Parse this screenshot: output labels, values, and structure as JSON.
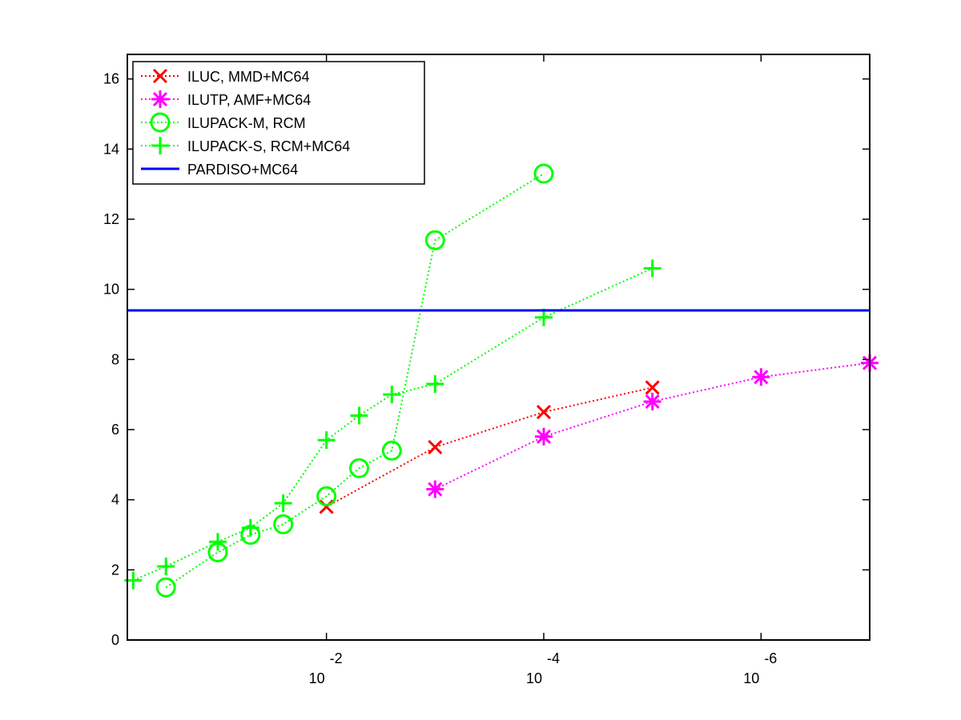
{
  "chart_data": {
    "type": "line",
    "title": "",
    "xlabel": "",
    "ylabel": "",
    "x_scale": "log-reversed",
    "x_tick_labels": [
      {
        "value": 0.01,
        "base": "10",
        "exp": "-2"
      },
      {
        "value": 0.0001,
        "base": "10",
        "exp": "-4"
      },
      {
        "value": 1e-06,
        "base": "10",
        "exp": "-6"
      }
    ],
    "xlim": [
      0.68,
      1e-07
    ],
    "ylim": [
      0,
      16.7
    ],
    "y_ticks": [
      0,
      2,
      4,
      6,
      8,
      10,
      12,
      14,
      16
    ],
    "legend_position": "top-left",
    "series": [
      {
        "name": "ILUC, MMD+MC64",
        "color": "#ff0000",
        "marker": "x",
        "line_style": "dotted",
        "points": [
          [
            0.01,
            3.8
          ],
          [
            0.001,
            5.5
          ],
          [
            0.0001,
            6.5
          ],
          [
            1e-05,
            7.2
          ]
        ]
      },
      {
        "name": "ILUTP, AMF+MC64",
        "color": "#ff00ff",
        "marker": "asterisk",
        "line_style": "dotted",
        "points": [
          [
            0.001,
            4.3
          ],
          [
            0.0001,
            5.8
          ],
          [
            1e-05,
            6.8
          ],
          [
            1e-06,
            7.5
          ],
          [
            1e-07,
            7.9
          ]
        ]
      },
      {
        "name": "ILUPACK-M, RCM",
        "color": "#00ff00",
        "marker": "circle",
        "line_style": "dotted",
        "points": [
          [
            0.3,
            1.5
          ],
          [
            0.1,
            2.5
          ],
          [
            0.05,
            3.0
          ],
          [
            0.025,
            3.3
          ],
          [
            0.01,
            4.1
          ],
          [
            0.005,
            4.9
          ],
          [
            0.0025,
            5.4
          ],
          [
            0.001,
            11.4
          ],
          [
            0.0001,
            13.3
          ]
        ]
      },
      {
        "name": "ILUPACK-S, RCM+MC64",
        "color": "#00ff00",
        "marker": "plus",
        "line_style": "dotted",
        "points": [
          [
            0.6,
            1.7
          ],
          [
            0.3,
            2.1
          ],
          [
            0.1,
            2.8
          ],
          [
            0.05,
            3.2
          ],
          [
            0.025,
            3.9
          ],
          [
            0.01,
            5.7
          ],
          [
            0.005,
            6.4
          ],
          [
            0.0025,
            7.0
          ],
          [
            0.001,
            7.3
          ],
          [
            0.0001,
            9.2
          ],
          [
            1e-05,
            10.6
          ]
        ]
      },
      {
        "name": "PARDISO+MC64",
        "color": "#0000ff",
        "marker": "none",
        "line_style": "solid",
        "constant_y": 9.4,
        "points": [
          [
            0.68,
            9.4
          ],
          [
            1e-07,
            9.4
          ]
        ]
      }
    ]
  }
}
